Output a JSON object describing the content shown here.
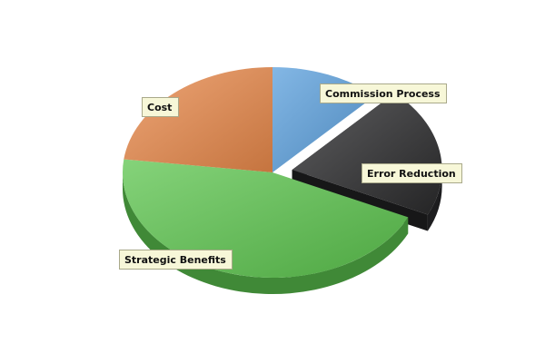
{
  "chart_data": {
    "type": "pie",
    "style": "3d-exploded",
    "title": "",
    "legend": "none",
    "slices": [
      {
        "label": "Commission Process",
        "value": 12,
        "color": "#5a9fdc",
        "exploded": false
      },
      {
        "label": "Error Reduction",
        "value": 20,
        "color": "#2a2a2c",
        "exploded": true
      },
      {
        "label": "Strategic Benefits",
        "value": 45,
        "color": "#5cc44e",
        "exploded": false
      },
      {
        "label": "Cost",
        "value": 23,
        "color": "#e8884a",
        "exploded": false
      }
    ]
  }
}
